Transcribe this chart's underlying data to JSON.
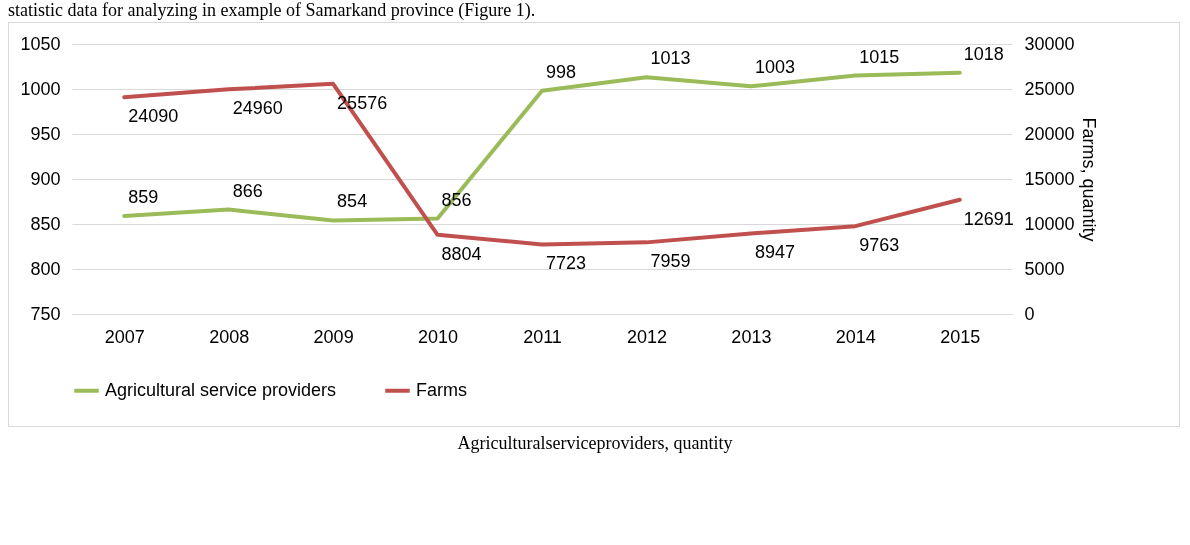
{
  "chart_data": {
    "type": "line",
    "categories": [
      "2007",
      "2008",
      "2009",
      "2010",
      "2011",
      "2012",
      "2013",
      "2014",
      "2015"
    ],
    "series": [
      {
        "name": "Agricultural service providers",
        "color": "#9bbb59",
        "values": [
          859,
          866,
          854,
          856,
          998,
          1013,
          1003,
          1015,
          1018
        ]
      },
      {
        "name": "Farms",
        "color": "#c0504d",
        "axis": "y2",
        "values": [
          24090,
          24960,
          25576,
          8804,
          7723,
          7959,
          8947,
          9763,
          12691
        ]
      }
    ],
    "ylim": [
      750,
      1050
    ],
    "yticks": [
      750,
      800,
      850,
      900,
      950,
      1000,
      1050
    ],
    "y2lim": [
      0,
      30000
    ],
    "y2ticks": [
      0,
      5000,
      10000,
      15000,
      20000,
      25000,
      30000
    ],
    "y2label": "Farms, quantity",
    "grid": "y",
    "legend": "bottom",
    "data_labels": true,
    "marker": "none",
    "line_style": "solid",
    "annotations": [
      "statistic data for analyzing in example of Samarkand province (Figure 1).",
      "Agriculturalserviceproviders, quantity"
    ]
  }
}
